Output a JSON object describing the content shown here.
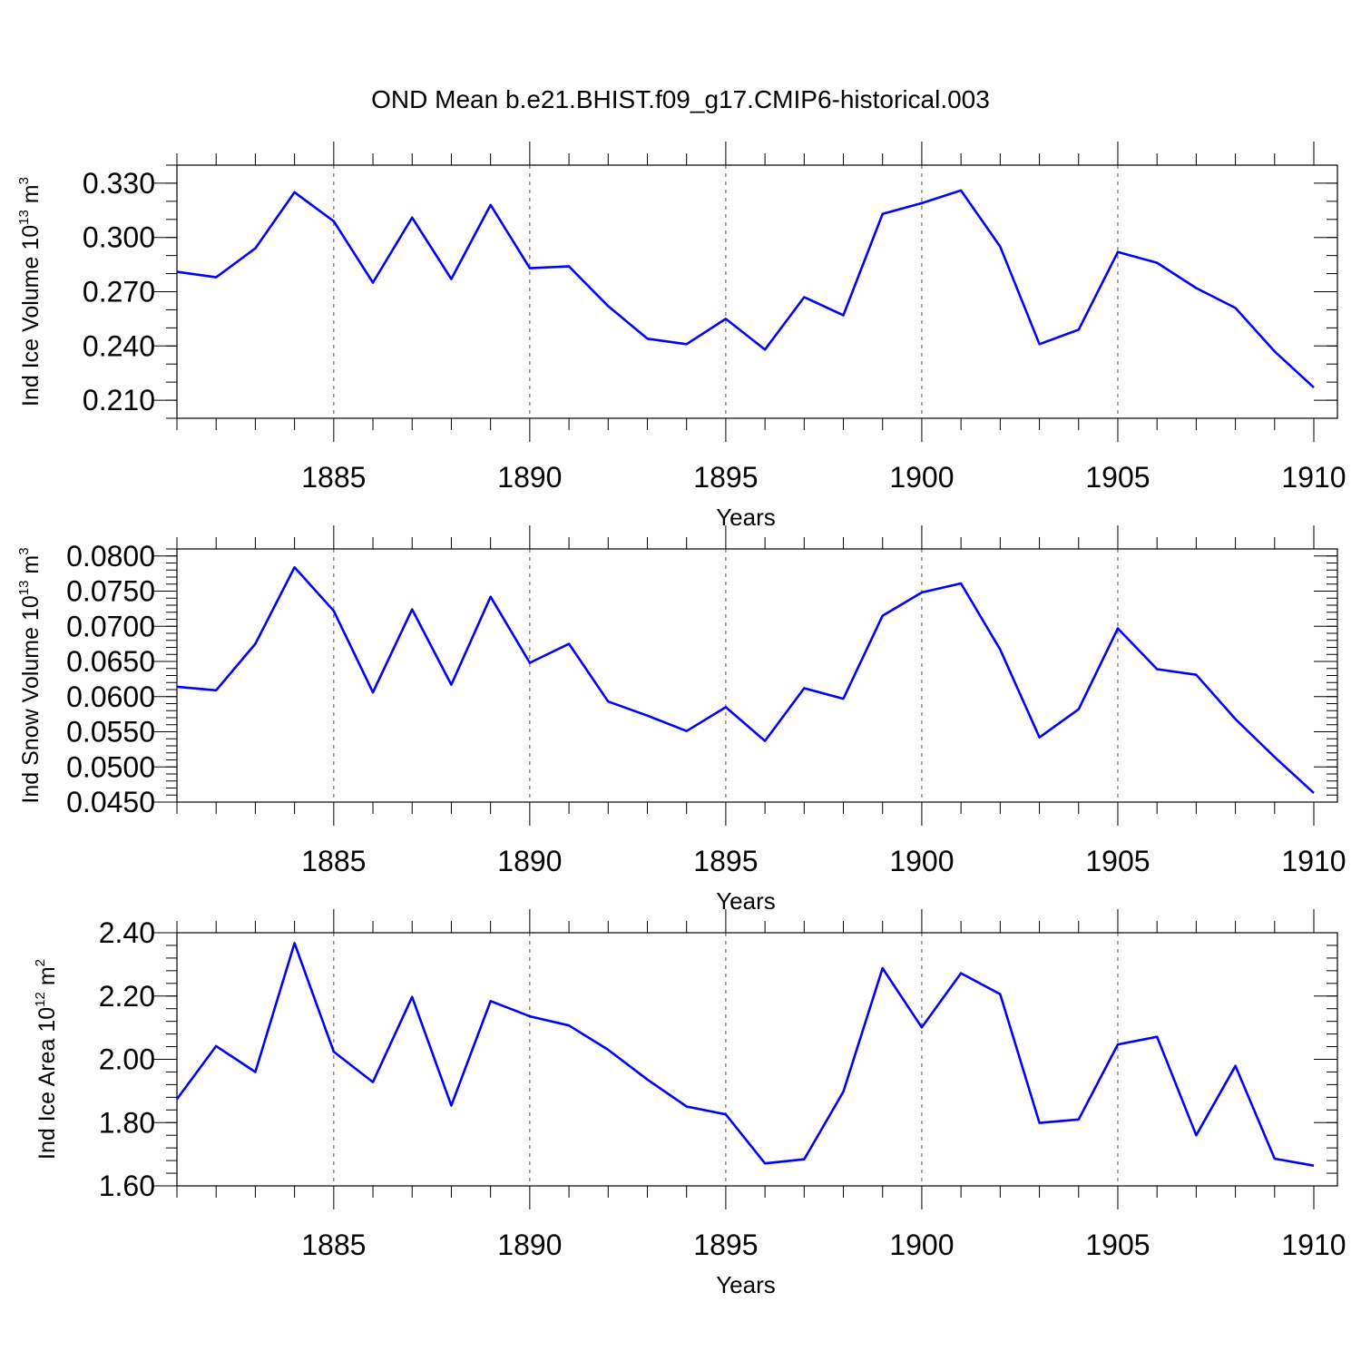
{
  "title": "OND Mean b.e21.BHIST.f09_g17.CMIP6-historical.003",
  "chart_data": [
    {
      "type": "line",
      "title": "OND Mean b.e21.BHIST.f09_g17.CMIP6-historical.003",
      "xlabel": "Years",
      "ylabel": {
        "main": "Ind Ice Volume 10",
        "sup": "13",
        "unit": " m",
        "unit_sup": "3"
      },
      "xlim": [
        1881,
        1910
      ],
      "ylim": [
        0.2,
        0.34
      ],
      "xticks": [
        "1885",
        "1890",
        "1895",
        "1900",
        "1905",
        "1910"
      ],
      "xtick_values": [
        1885,
        1890,
        1895,
        1900,
        1905,
        1910
      ],
      "yticks": [
        "0.330",
        "0.300",
        "0.270",
        "0.240",
        "0.210"
      ],
      "ytick_values": [
        0.33,
        0.3,
        0.27,
        0.24,
        0.21
      ],
      "yminor_step": 0.01,
      "x": [
        1881,
        1882,
        1883,
        1884,
        1885,
        1886,
        1887,
        1888,
        1889,
        1890,
        1891,
        1892,
        1893,
        1894,
        1895,
        1896,
        1897,
        1898,
        1899,
        1900,
        1901,
        1902,
        1903,
        1904,
        1905,
        1906,
        1907,
        1908,
        1909,
        1910
      ],
      "series": [
        {
          "name": "Ind Ice Volume",
          "color": "#0000ff",
          "values": [
            0.281,
            0.278,
            0.294,
            0.325,
            0.309,
            0.275,
            0.311,
            0.277,
            0.318,
            0.283,
            0.284,
            0.262,
            0.244,
            0.241,
            0.255,
            0.238,
            0.267,
            0.257,
            0.313,
            0.319,
            0.326,
            0.295,
            0.241,
            0.249,
            0.292,
            0.286,
            0.272,
            0.261,
            0.237,
            0.217
          ]
        }
      ]
    },
    {
      "type": "line",
      "xlabel": "Years",
      "ylabel": {
        "main": "Ind Snow Volume 10",
        "sup": "13",
        "unit": " m",
        "unit_sup": "3"
      },
      "xlim": [
        1881,
        1910
      ],
      "ylim": [
        0.045,
        0.081
      ],
      "xticks": [
        "1885",
        "1890",
        "1895",
        "1900",
        "1905",
        "1910"
      ],
      "xtick_values": [
        1885,
        1890,
        1895,
        1900,
        1905,
        1910
      ],
      "yticks": [
        "0.0800",
        "0.0750",
        "0.0700",
        "0.0650",
        "0.0600",
        "0.0550",
        "0.0500",
        "0.0450"
      ],
      "ytick_values": [
        0.08,
        0.075,
        0.07,
        0.065,
        0.06,
        0.055,
        0.05,
        0.045
      ],
      "yminor_step": 0.001,
      "x": [
        1881,
        1882,
        1883,
        1884,
        1885,
        1886,
        1887,
        1888,
        1889,
        1890,
        1891,
        1892,
        1893,
        1894,
        1895,
        1896,
        1897,
        1898,
        1899,
        1900,
        1901,
        1902,
        1903,
        1904,
        1905,
        1906,
        1907,
        1908,
        1909,
        1910
      ],
      "series": [
        {
          "name": "Ind Snow Volume",
          "color": "#0000ff",
          "values": [
            0.0614,
            0.0609,
            0.0675,
            0.0784,
            0.0722,
            0.0606,
            0.0724,
            0.0617,
            0.0742,
            0.0648,
            0.0675,
            0.0593,
            0.0573,
            0.0551,
            0.0585,
            0.0537,
            0.0612,
            0.0597,
            0.0715,
            0.0748,
            0.0761,
            0.0667,
            0.0542,
            0.0582,
            0.0697,
            0.0639,
            0.0631,
            0.0568,
            0.0514,
            0.0463
          ]
        }
      ]
    },
    {
      "type": "line",
      "xlabel": "Years",
      "ylabel": {
        "main": "Ind Ice Area 10",
        "sup": "12",
        "unit": " m",
        "unit_sup": "2"
      },
      "xlim": [
        1881,
        1910
      ],
      "ylim": [
        1.6,
        2.4
      ],
      "xticks": [
        "1885",
        "1890",
        "1895",
        "1900",
        "1905",
        "1910"
      ],
      "xtick_values": [
        1885,
        1890,
        1895,
        1900,
        1905,
        1910
      ],
      "yticks": [
        "2.40",
        "2.20",
        "2.00",
        "1.80",
        "1.60"
      ],
      "ytick_values": [
        2.4,
        2.2,
        2.0,
        1.8,
        1.6
      ],
      "yminor_step": 0.04,
      "x": [
        1881,
        1882,
        1883,
        1884,
        1885,
        1886,
        1887,
        1888,
        1889,
        1890,
        1891,
        1892,
        1893,
        1894,
        1895,
        1896,
        1897,
        1898,
        1899,
        1900,
        1901,
        1902,
        1903,
        1904,
        1905,
        1906,
        1907,
        1908,
        1909,
        1910
      ],
      "series": [
        {
          "name": "Ind Ice Area",
          "color": "#0000ff",
          "values": [
            1.874,
            2.042,
            1.96,
            2.367,
            2.024,
            1.928,
            2.197,
            1.854,
            2.184,
            2.136,
            2.107,
            2.03,
            1.936,
            1.851,
            1.826,
            1.671,
            1.684,
            1.898,
            2.288,
            2.101,
            2.272,
            2.206,
            1.799,
            1.81,
            2.047,
            2.071,
            1.76,
            1.979,
            1.686,
            1.664
          ]
        }
      ]
    }
  ]
}
